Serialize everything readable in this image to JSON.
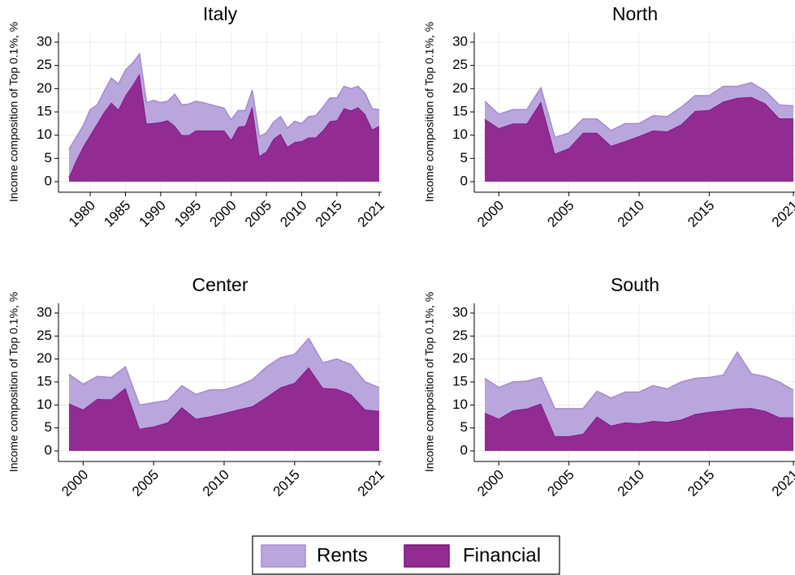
{
  "chart_data": [
    {
      "type": "area",
      "title": "Italy",
      "y_label": "Income composition of Top 0.1%, %",
      "x": [
        1977,
        1978,
        1979,
        1980,
        1981,
        1982,
        1983,
        1984,
        1985,
        1986,
        1987,
        1988,
        1989,
        1990,
        1991,
        1992,
        1993,
        1994,
        1995,
        1996,
        1997,
        1998,
        1999,
        2000,
        2001,
        2002,
        2003,
        2004,
        2005,
        2006,
        2007,
        2008,
        2009,
        2010,
        2011,
        2012,
        2013,
        2014,
        2015,
        2016,
        2017,
        2018,
        2019,
        2020,
        2021
      ],
      "series": [
        {
          "name": "Rents",
          "color": "#b9a6dd",
          "values": [
            6,
            5,
            4.5,
            5.5,
            4,
            4.5,
            5.3,
            5.5,
            5.5,
            4.8,
            4.3,
            4.5,
            4.9,
            4.2,
            4.1,
            6.8,
            6.5,
            6.7,
            6.3,
            6,
            5.6,
            5.2,
            4.8,
            4.3,
            3.5,
            3.3,
            3.5,
            4.2,
            4,
            3.6,
            3.7,
            4,
            4.5,
            3.8,
            4.5,
            4.7,
            5,
            5,
            4.8,
            4.7,
            4.7,
            4.5,
            4.5,
            4.5,
            3.5
          ]
        },
        {
          "name": "Financial",
          "color": "#922c92",
          "values": [
            1,
            4.5,
            7.5,
            10,
            12.5,
            15,
            17,
            15.5,
            18.5,
            20.7,
            23.2,
            12.5,
            12.6,
            12.8,
            13.2,
            12,
            10,
            10,
            11,
            11,
            11,
            11,
            11,
            9,
            11.8,
            12,
            16.2,
            5.5,
            6.5,
            9.2,
            10.3,
            7.5,
            8.5,
            8.7,
            9.5,
            9.5,
            11,
            13,
            13.2,
            15.8,
            15.3,
            16,
            14.5,
            11.2,
            12
          ]
        }
      ],
      "xlim": [
        1977,
        2021
      ],
      "xticks": [
        1980,
        1985,
        1990,
        1995,
        2000,
        2005,
        2010,
        2015,
        2021
      ],
      "ylim": [
        0,
        30
      ],
      "yticks": [
        0,
        5,
        10,
        15,
        20,
        25,
        30
      ],
      "grid": true,
      "stacked": true
    },
    {
      "type": "area",
      "title": "North",
      "y_label": "Income composition of Top 0.1%, %",
      "x": [
        1999,
        2000,
        2001,
        2002,
        2003,
        2004,
        2005,
        2006,
        2007,
        2008,
        2009,
        2010,
        2011,
        2012,
        2013,
        2014,
        2015,
        2016,
        2017,
        2018,
        2019,
        2020,
        2021
      ],
      "series": [
        {
          "name": "Rents",
          "color": "#b9a6dd",
          "values": [
            3.8,
            3,
            3,
            3,
            3,
            3.5,
            3.3,
            3,
            3,
            3.3,
            3.8,
            2.7,
            3.2,
            3.2,
            3.7,
            3.3,
            3.1,
            3.3,
            2.5,
            3.1,
            2.7,
            2.9,
            2.7
          ]
        },
        {
          "name": "Financial",
          "color": "#922c92",
          "values": [
            13.5,
            11.5,
            12.5,
            12.5,
            17.2,
            6,
            7.2,
            10.5,
            10.5,
            7.7,
            8.7,
            9.8,
            11,
            10.8,
            12.3,
            15.2,
            15.4,
            17.2,
            18,
            18.2,
            16.8,
            13.6,
            13.6
          ]
        }
      ],
      "xlim": [
        1999,
        2021
      ],
      "xticks": [
        2000,
        2005,
        2010,
        2015,
        2021
      ],
      "ylim": [
        0,
        30
      ],
      "yticks": [
        0,
        5,
        10,
        15,
        20,
        25,
        30
      ],
      "grid": true,
      "stacked": true
    },
    {
      "type": "area",
      "title": "Center",
      "y_label": "Income composition of Top 0.1%, %",
      "x": [
        1999,
        2000,
        2001,
        2002,
        2003,
        2004,
        2005,
        2006,
        2007,
        2008,
        2009,
        2010,
        2011,
        2012,
        2013,
        2014,
        2015,
        2016,
        2017,
        2018,
        2019,
        2020,
        2021
      ],
      "series": [
        {
          "name": "Rents",
          "color": "#b9a6dd",
          "values": [
            6.4,
            5.5,
            4.9,
            4.8,
            4.6,
            5.2,
            5.2,
            4.8,
            4.7,
            5.3,
            5.8,
            5.1,
            5.2,
            5.8,
            6.6,
            6.5,
            6.2,
            6.3,
            5.5,
            6.5,
            6.5,
            6,
            5.1
          ]
        },
        {
          "name": "Financial",
          "color": "#922c92",
          "values": [
            10.3,
            9,
            11.3,
            11.2,
            13.7,
            4.8,
            5.3,
            6.2,
            9.5,
            7,
            7.5,
            8.2,
            9,
            9.7,
            11.7,
            13.8,
            14.8,
            18.2,
            13.7,
            13.5,
            12.3,
            9,
            8.7
          ]
        }
      ],
      "xlim": [
        1999,
        2021
      ],
      "xticks": [
        2000,
        2005,
        2010,
        2015,
        2021
      ],
      "ylim": [
        0,
        30
      ],
      "yticks": [
        0,
        5,
        10,
        15,
        20,
        25,
        30
      ],
      "grid": true,
      "stacked": true
    },
    {
      "type": "area",
      "title": "South",
      "y_label": "Income composition of Top 0.1%, %",
      "x": [
        1999,
        2000,
        2001,
        2002,
        2003,
        2004,
        2005,
        2006,
        2007,
        2008,
        2009,
        2010,
        2011,
        2012,
        2013,
        2014,
        2015,
        2016,
        2017,
        2018,
        2019,
        2020,
        2021
      ],
      "series": [
        {
          "name": "Rents",
          "color": "#b9a6dd",
          "values": [
            7.5,
            6.8,
            6.2,
            6,
            5.7,
            6,
            6,
            5.5,
            5.5,
            6,
            6.6,
            6.8,
            7.7,
            7.2,
            8.2,
            7.8,
            7.5,
            7.7,
            12.3,
            7.5,
            7.5,
            7.7,
            5.9
          ]
        },
        {
          "name": "Financial",
          "color": "#922c92",
          "values": [
            8.3,
            7,
            8.8,
            9.2,
            10.3,
            3.2,
            3.2,
            3.7,
            7.5,
            5.5,
            6.2,
            6,
            6.5,
            6.3,
            6.8,
            8,
            8.5,
            8.8,
            9.2,
            9.3,
            8.7,
            7.3,
            7.3
          ]
        }
      ],
      "xlim": [
        1999,
        2021
      ],
      "xticks": [
        2000,
        2005,
        2010,
        2015,
        2021
      ],
      "ylim": [
        0,
        30
      ],
      "yticks": [
        0,
        5,
        10,
        15,
        20,
        25,
        30
      ],
      "grid": true,
      "stacked": true
    }
  ]
}
